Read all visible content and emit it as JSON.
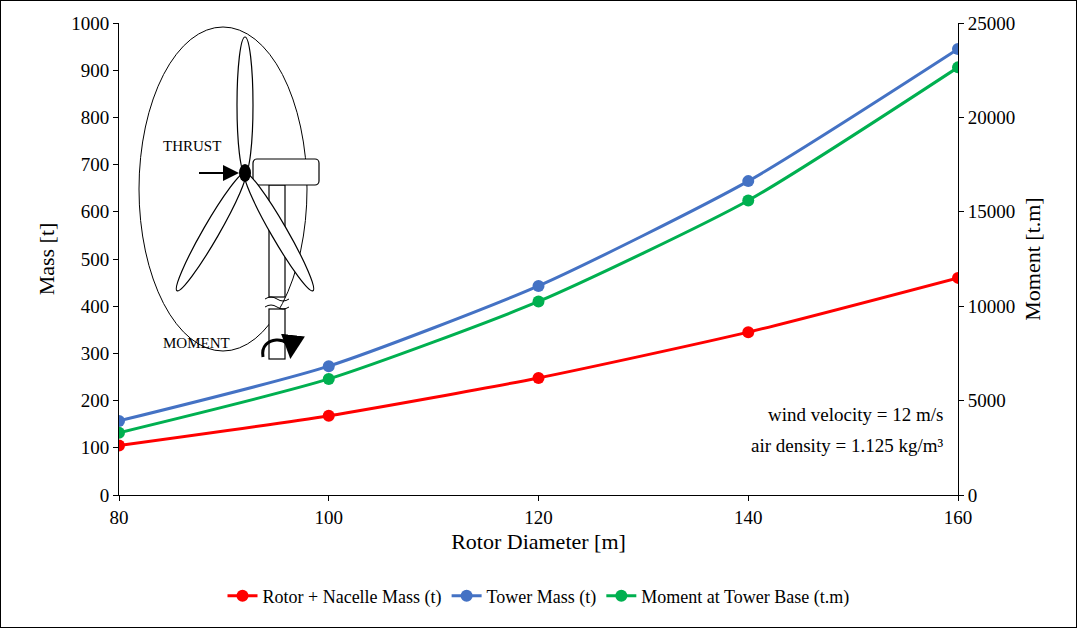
{
  "chart_data": {
    "type": "line",
    "x_label": "Rotor Diameter [m]",
    "y_label": "Mass [t]",
    "y2_label": "Moment [t.m]",
    "x": [
      80,
      100,
      120,
      140,
      160
    ],
    "series": [
      {
        "name": "Rotor + Nacelle Mass (t)",
        "color": "#ff0000",
        "values": [
          105,
          168,
          248,
          345,
          460
        ],
        "marker": "circle",
        "line_style": "solid"
      },
      {
        "name": "Tower Mass (t)",
        "color": "#4472c4",
        "values": [
          157,
          273,
          443,
          665,
          945
        ],
        "marker": "circle",
        "line_style": "solid"
      },
      {
        "name": "Moment at Tower Base (t.m)",
        "color": "#00b050",
        "values": [
          3300,
          6150,
          10250,
          15600,
          22650
        ],
        "axis": "y2",
        "marker": "circle",
        "line_style": "solid"
      }
    ],
    "xlim": [
      80,
      160
    ],
    "xticks": [
      80,
      100,
      120,
      140,
      160
    ],
    "ylim": [
      0,
      1000
    ],
    "yticks": [
      0,
      100,
      200,
      300,
      400,
      500,
      600,
      700,
      800,
      900,
      1000
    ],
    "y2lim": [
      0,
      25000
    ],
    "y2ticks": [
      0,
      5000,
      10000,
      15000,
      20000,
      25000
    ],
    "grid": false,
    "legend": "bottom",
    "annotations": [
      "wind velocity = 12 m/s",
      "air density = 1.125 kg/m³"
    ],
    "diagram_labels": {
      "thrust": "THRUST",
      "moment": "MOMENT"
    }
  }
}
